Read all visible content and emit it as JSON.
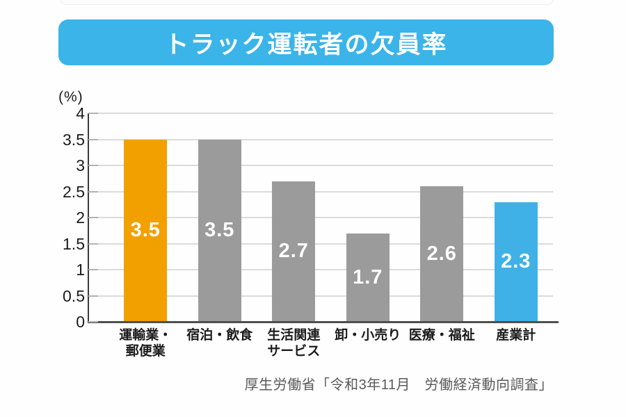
{
  "page": {
    "background": "#fefefe"
  },
  "banner": {
    "title": "トラック運転者の欠員率",
    "color": "#3ab4e9",
    "text_color": "#ffffff"
  },
  "chart_data": {
    "type": "bar",
    "title": "トラック運転者の欠員率",
    "unit_label": "(%)",
    "categories": [
      [
        "運輸業・",
        "郵便業"
      ],
      [
        "宿泊・飲食"
      ],
      [
        "生活関連",
        "サービス"
      ],
      [
        "卸・小売り"
      ],
      [
        "医療・福祉"
      ],
      [
        "産業計"
      ]
    ],
    "values": [
      3.5,
      3.5,
      2.7,
      1.7,
      2.6,
      2.3
    ],
    "value_labels": [
      "3.5",
      "3.5",
      "2.7",
      "1.7",
      "2.6",
      "2.3"
    ],
    "bar_colors": [
      "#f2a000",
      "#9b9b9b",
      "#9b9b9b",
      "#9b9b9b",
      "#9b9b9b",
      "#3fb1e6"
    ],
    "ylim": [
      0,
      4
    ],
    "ytick_step": 0.5,
    "ytick_labels": [
      "4",
      "3.5",
      "3",
      "2.5",
      "2",
      "1.5",
      "1",
      "0.5",
      "0"
    ],
    "grid": true,
    "legend": "none",
    "source": "厚生労働省「令和3年11月　労働経済動向調査」"
  },
  "colors": {
    "gridline": "#dbdbdb",
    "axis": "#3a3a3a",
    "tick_label": "#1b1b1b",
    "source_text": "#595959"
  }
}
